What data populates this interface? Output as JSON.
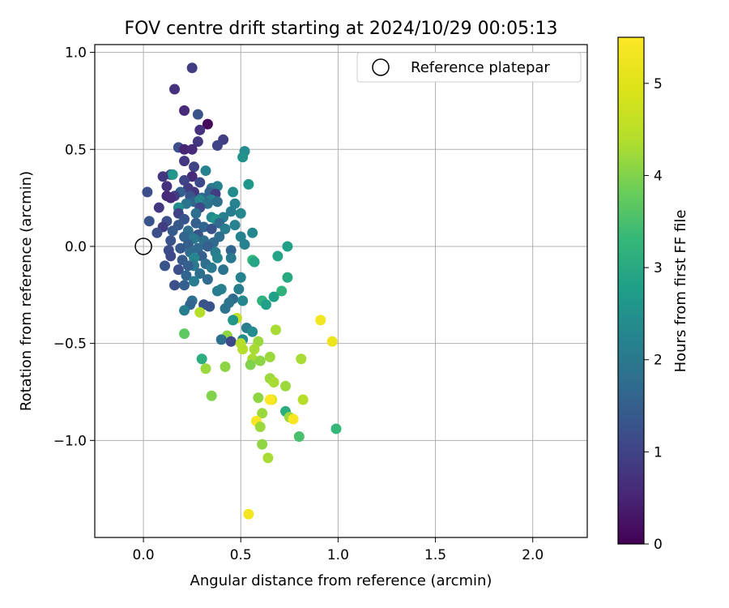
{
  "chart_data": {
    "type": "scatter",
    "title": "FOV centre drift starting at 2024/10/29 00:05:13",
    "xlabel": "Angular distance from reference (arcmin)",
    "ylabel": "Rotation from reference (arcmin)",
    "xlim": [
      -0.25,
      2.28
    ],
    "ylim": [
      -1.5,
      1.04
    ],
    "x_ticks": [
      0.0,
      0.5,
      1.0,
      1.5,
      2.0
    ],
    "x_tick_labels": [
      "0.0",
      "0.5",
      "1.0",
      "1.5",
      "2.0"
    ],
    "y_ticks": [
      -1.0,
      -0.5,
      0.0,
      0.5,
      1.0
    ],
    "y_tick_labels": [
      "−1.0",
      "−0.5",
      "0.0",
      "0.5",
      "1.0"
    ],
    "grid": true,
    "legend": {
      "placement": "top-right",
      "entries": [
        {
          "label": "Reference platepar",
          "marker": "open-circle"
        }
      ]
    },
    "reference_point": {
      "x": 0.0,
      "y": 0.0
    },
    "colorbar": {
      "label": "Hours from first FF file",
      "colormap": "viridis",
      "range": [
        0,
        5.5
      ],
      "ticks": [
        0,
        1,
        2,
        3,
        4,
        5
      ],
      "tick_labels": [
        "0",
        "1",
        "2",
        "3",
        "4",
        "5"
      ]
    },
    "points": [
      {
        "x": 0.25,
        "y": 0.92,
        "c": 0.9
      },
      {
        "x": 0.16,
        "y": 0.81,
        "c": 0.7
      },
      {
        "x": 0.21,
        "y": 0.7,
        "c": 0.6
      },
      {
        "x": 0.28,
        "y": 0.68,
        "c": 1.3
      },
      {
        "x": 0.33,
        "y": 0.63,
        "c": 0.1
      },
      {
        "x": 0.29,
        "y": 0.6,
        "c": 0.7
      },
      {
        "x": 0.41,
        "y": 0.55,
        "c": 0.9
      },
      {
        "x": 0.28,
        "y": 0.54,
        "c": 0.8
      },
      {
        "x": 0.38,
        "y": 0.52,
        "c": 1.0
      },
      {
        "x": 0.18,
        "y": 0.51,
        "c": 1.2
      },
      {
        "x": 0.21,
        "y": 0.5,
        "c": 0.5
      },
      {
        "x": 0.25,
        "y": 0.5,
        "c": 0.6
      },
      {
        "x": 0.52,
        "y": 0.49,
        "c": 2.4
      },
      {
        "x": 0.51,
        "y": 0.46,
        "c": 2.5
      },
      {
        "x": 0.21,
        "y": 0.44,
        "c": 0.8
      },
      {
        "x": 0.26,
        "y": 0.41,
        "c": 1.0
      },
      {
        "x": 0.32,
        "y": 0.39,
        "c": 2.2
      },
      {
        "x": 0.14,
        "y": 0.37,
        "c": 0.9
      },
      {
        "x": 0.15,
        "y": 0.37,
        "c": 2.6
      },
      {
        "x": 0.1,
        "y": 0.36,
        "c": 0.8
      },
      {
        "x": 0.25,
        "y": 0.36,
        "c": 0.6
      },
      {
        "x": 0.21,
        "y": 0.34,
        "c": 1.0
      },
      {
        "x": 0.29,
        "y": 0.33,
        "c": 1.1
      },
      {
        "x": 0.54,
        "y": 0.32,
        "c": 2.6
      },
      {
        "x": 0.12,
        "y": 0.31,
        "c": 0.7
      },
      {
        "x": 0.38,
        "y": 0.31,
        "c": 2.2
      },
      {
        "x": 0.23,
        "y": 0.3,
        "c": 0.9
      },
      {
        "x": 0.35,
        "y": 0.3,
        "c": 2.0
      },
      {
        "x": 0.02,
        "y": 0.28,
        "c": 1.2
      },
      {
        "x": 0.19,
        "y": 0.28,
        "c": 1.5
      },
      {
        "x": 0.26,
        "y": 0.28,
        "c": 0.8
      },
      {
        "x": 0.34,
        "y": 0.28,
        "c": 1.6
      },
      {
        "x": 0.46,
        "y": 0.28,
        "c": 2.4
      },
      {
        "x": 0.37,
        "y": 0.27,
        "c": 0.9
      },
      {
        "x": 0.12,
        "y": 0.26,
        "c": 0.6
      },
      {
        "x": 0.16,
        "y": 0.26,
        "c": 0.9
      },
      {
        "x": 0.24,
        "y": 0.26,
        "c": 1.3
      },
      {
        "x": 0.3,
        "y": 0.25,
        "c": 1.6
      },
      {
        "x": 0.14,
        "y": 0.25,
        "c": 0.6
      },
      {
        "x": 0.35,
        "y": 0.24,
        "c": 2.2
      },
      {
        "x": 0.26,
        "y": 0.23,
        "c": 1.6
      },
      {
        "x": 0.29,
        "y": 0.24,
        "c": 2.3
      },
      {
        "x": 0.38,
        "y": 0.23,
        "c": 1.8
      },
      {
        "x": 0.47,
        "y": 0.22,
        "c": 2.2
      },
      {
        "x": 0.22,
        "y": 0.22,
        "c": 1.9
      },
      {
        "x": 0.33,
        "y": 0.22,
        "c": 1.9
      },
      {
        "x": 0.18,
        "y": 0.2,
        "c": 2.4
      },
      {
        "x": 0.08,
        "y": 0.2,
        "c": 0.8
      },
      {
        "x": 0.29,
        "y": 0.2,
        "c": 1.1
      },
      {
        "x": 0.45,
        "y": 0.18,
        "c": 2.1
      },
      {
        "x": 0.5,
        "y": 0.17,
        "c": 2.3
      },
      {
        "x": 0.27,
        "y": 0.17,
        "c": 1.8
      },
      {
        "x": 0.18,
        "y": 0.17,
        "c": 1.0
      },
      {
        "x": 0.35,
        "y": 0.15,
        "c": 2.3
      },
      {
        "x": 0.41,
        "y": 0.15,
        "c": 2.1
      },
      {
        "x": 0.37,
        "y": 0.14,
        "c": 2.6
      },
      {
        "x": 0.21,
        "y": 0.14,
        "c": 1.3
      },
      {
        "x": 0.03,
        "y": 0.13,
        "c": 1.3
      },
      {
        "x": 0.12,
        "y": 0.13,
        "c": 1.2
      },
      {
        "x": 0.39,
        "y": 0.12,
        "c": 1.7
      },
      {
        "x": 0.27,
        "y": 0.12,
        "c": 1.5
      },
      {
        "x": 0.47,
        "y": 0.11,
        "c": 2.2
      },
      {
        "x": 0.18,
        "y": 0.11,
        "c": 1.4
      },
      {
        "x": 0.1,
        "y": 0.1,
        "c": 0.9
      },
      {
        "x": 0.31,
        "y": 0.1,
        "c": 1.6
      },
      {
        "x": 0.42,
        "y": 0.09,
        "c": 2.1
      },
      {
        "x": 0.35,
        "y": 0.09,
        "c": 1.3
      },
      {
        "x": 0.15,
        "y": 0.08,
        "c": 1.4
      },
      {
        "x": 0.23,
        "y": 0.08,
        "c": 1.8
      },
      {
        "x": 0.56,
        "y": 0.07,
        "c": 2.3
      },
      {
        "x": 0.07,
        "y": 0.07,
        "c": 1.2
      },
      {
        "x": 0.28,
        "y": 0.06,
        "c": 1.3
      },
      {
        "x": 0.21,
        "y": 0.05,
        "c": 1.6
      },
      {
        "x": 0.5,
        "y": 0.05,
        "c": 2.2
      },
      {
        "x": 0.39,
        "y": 0.05,
        "c": 1.8
      },
      {
        "x": 0.26,
        "y": 0.04,
        "c": 2.0
      },
      {
        "x": 0.14,
        "y": 0.03,
        "c": 1.3
      },
      {
        "x": 0.31,
        "y": 0.03,
        "c": 1.8
      },
      {
        "x": 0.36,
        "y": 0.02,
        "c": 1.7
      },
      {
        "x": 0.23,
        "y": 0.01,
        "c": 1.5
      },
      {
        "x": 0.52,
        "y": 0.01,
        "c": 2.2
      },
      {
        "x": 0.74,
        "y": 0.0,
        "c": 2.8
      },
      {
        "x": 0.19,
        "y": -0.01,
        "c": 1.4
      },
      {
        "x": 0.28,
        "y": -0.01,
        "c": 1.7
      },
      {
        "x": 0.33,
        "y": 0.0,
        "c": 1.5
      },
      {
        "x": 0.13,
        "y": -0.02,
        "c": 1.2
      },
      {
        "x": 0.45,
        "y": -0.02,
        "c": 1.6
      },
      {
        "x": 0.24,
        "y": -0.03,
        "c": 1.7
      },
      {
        "x": 0.37,
        "y": -0.03,
        "c": 2.1
      },
      {
        "x": 0.14,
        "y": -0.05,
        "c": 1.1
      },
      {
        "x": 0.3,
        "y": -0.05,
        "c": 1.5
      },
      {
        "x": 0.69,
        "y": -0.05,
        "c": 2.9
      },
      {
        "x": 0.26,
        "y": -0.06,
        "c": 2.3
      },
      {
        "x": 0.38,
        "y": -0.06,
        "c": 2.2
      },
      {
        "x": 0.45,
        "y": -0.06,
        "c": 2.0
      },
      {
        "x": 0.2,
        "y": -0.07,
        "c": 1.4
      },
      {
        "x": 0.56,
        "y": -0.07,
        "c": 3.3
      },
      {
        "x": 0.57,
        "y": -0.08,
        "c": 2.9
      },
      {
        "x": 0.32,
        "y": -0.09,
        "c": 1.8
      },
      {
        "x": 0.11,
        "y": -0.1,
        "c": 1.3
      },
      {
        "x": 0.26,
        "y": -0.1,
        "c": 2.0
      },
      {
        "x": 0.23,
        "y": -0.1,
        "c": 1.5
      },
      {
        "x": 0.35,
        "y": -0.11,
        "c": 2.0
      },
      {
        "x": 0.18,
        "y": -0.12,
        "c": 1.2
      },
      {
        "x": 0.41,
        "y": -0.12,
        "c": 1.9
      },
      {
        "x": 0.29,
        "y": -0.14,
        "c": 1.8
      },
      {
        "x": 0.22,
        "y": -0.15,
        "c": 1.6
      },
      {
        "x": 0.74,
        "y": -0.16,
        "c": 3.0
      },
      {
        "x": 0.5,
        "y": -0.16,
        "c": 2.2
      },
      {
        "x": 0.33,
        "y": -0.17,
        "c": 1.7
      },
      {
        "x": 0.26,
        "y": -0.18,
        "c": 2.1
      },
      {
        "x": 0.16,
        "y": -0.2,
        "c": 1.2
      },
      {
        "x": 0.21,
        "y": -0.2,
        "c": 1.5
      },
      {
        "x": 0.49,
        "y": -0.22,
        "c": 2.1
      },
      {
        "x": 0.4,
        "y": -0.22,
        "c": 2.2
      },
      {
        "x": 0.38,
        "y": -0.23,
        "c": 2.1
      },
      {
        "x": 0.71,
        "y": -0.23,
        "c": 3.2
      },
      {
        "x": 0.67,
        "y": -0.26,
        "c": 2.8
      },
      {
        "x": 0.46,
        "y": -0.27,
        "c": 1.7
      },
      {
        "x": 0.25,
        "y": -0.28,
        "c": 1.8
      },
      {
        "x": 0.51,
        "y": -0.28,
        "c": 2.3
      },
      {
        "x": 0.61,
        "y": -0.28,
        "c": 3.2
      },
      {
        "x": 0.44,
        "y": -0.29,
        "c": 1.9
      },
      {
        "x": 0.31,
        "y": -0.3,
        "c": 1.3
      },
      {
        "x": 0.24,
        "y": -0.3,
        "c": 1.6
      },
      {
        "x": 0.63,
        "y": -0.3,
        "c": 2.8
      },
      {
        "x": 0.34,
        "y": -0.31,
        "c": 1.3
      },
      {
        "x": 0.42,
        "y": -0.32,
        "c": 1.9
      },
      {
        "x": 0.21,
        "y": -0.33,
        "c": 2.1
      },
      {
        "x": 0.29,
        "y": -0.34,
        "c": 4.4
      },
      {
        "x": 0.48,
        "y": -0.37,
        "c": 4.6
      },
      {
        "x": 0.46,
        "y": -0.38,
        "c": 2.6
      },
      {
        "x": 0.53,
        "y": -0.42,
        "c": 2.1
      },
      {
        "x": 0.56,
        "y": -0.44,
        "c": 2.4
      },
      {
        "x": 0.68,
        "y": -0.43,
        "c": 4.3
      },
      {
        "x": 0.21,
        "y": -0.45,
        "c": 3.7
      },
      {
        "x": 0.43,
        "y": -0.46,
        "c": 4.1
      },
      {
        "x": 0.4,
        "y": -0.48,
        "c": 1.8
      },
      {
        "x": 0.45,
        "y": -0.49,
        "c": 1.1
      },
      {
        "x": 0.51,
        "y": -0.48,
        "c": 2.4
      },
      {
        "x": 0.5,
        "y": -0.5,
        "c": 4.4
      },
      {
        "x": 0.59,
        "y": -0.49,
        "c": 4.2
      },
      {
        "x": 0.51,
        "y": -0.53,
        "c": 4.4
      },
      {
        "x": 0.57,
        "y": -0.53,
        "c": 4.3
      },
      {
        "x": 0.3,
        "y": -0.58,
        "c": 3.1
      },
      {
        "x": 0.56,
        "y": -0.58,
        "c": 4.3
      },
      {
        "x": 0.65,
        "y": -0.57,
        "c": 4.2
      },
      {
        "x": 0.6,
        "y": -0.59,
        "c": 4.1
      },
      {
        "x": 0.81,
        "y": -0.58,
        "c": 4.3
      },
      {
        "x": 0.55,
        "y": -0.61,
        "c": 4.0
      },
      {
        "x": 0.42,
        "y": -0.62,
        "c": 4.1
      },
      {
        "x": 0.32,
        "y": -0.63,
        "c": 4.2
      },
      {
        "x": 0.65,
        "y": -0.68,
        "c": 4.2
      },
      {
        "x": 0.67,
        "y": -0.7,
        "c": 4.3
      },
      {
        "x": 0.73,
        "y": -0.72,
        "c": 4.2
      },
      {
        "x": 0.35,
        "y": -0.77,
        "c": 4.0
      },
      {
        "x": 0.59,
        "y": -0.78,
        "c": 4.1
      },
      {
        "x": 0.66,
        "y": -0.79,
        "c": 4.9
      },
      {
        "x": 0.82,
        "y": -0.79,
        "c": 4.4
      },
      {
        "x": 0.73,
        "y": -0.85,
        "c": 3.1
      },
      {
        "x": 0.61,
        "y": -0.86,
        "c": 4.2
      },
      {
        "x": 0.75,
        "y": -0.88,
        "c": 4.2
      },
      {
        "x": 0.58,
        "y": -0.9,
        "c": 5.4
      },
      {
        "x": 0.77,
        "y": -0.89,
        "c": 5.4
      },
      {
        "x": 0.6,
        "y": -0.93,
        "c": 4.2
      },
      {
        "x": 0.99,
        "y": -0.94,
        "c": 3.3
      },
      {
        "x": 0.8,
        "y": -0.98,
        "c": 3.5
      },
      {
        "x": 0.61,
        "y": -1.02,
        "c": 4.1
      },
      {
        "x": 0.64,
        "y": -1.09,
        "c": 4.3
      },
      {
        "x": 0.91,
        "y": -0.38,
        "c": 5.3
      },
      {
        "x": 0.97,
        "y": -0.49,
        "c": 5.2
      },
      {
        "x": 0.65,
        "y": -0.79,
        "c": 5.5
      },
      {
        "x": 0.54,
        "y": -1.38,
        "c": 5.3
      }
    ]
  }
}
